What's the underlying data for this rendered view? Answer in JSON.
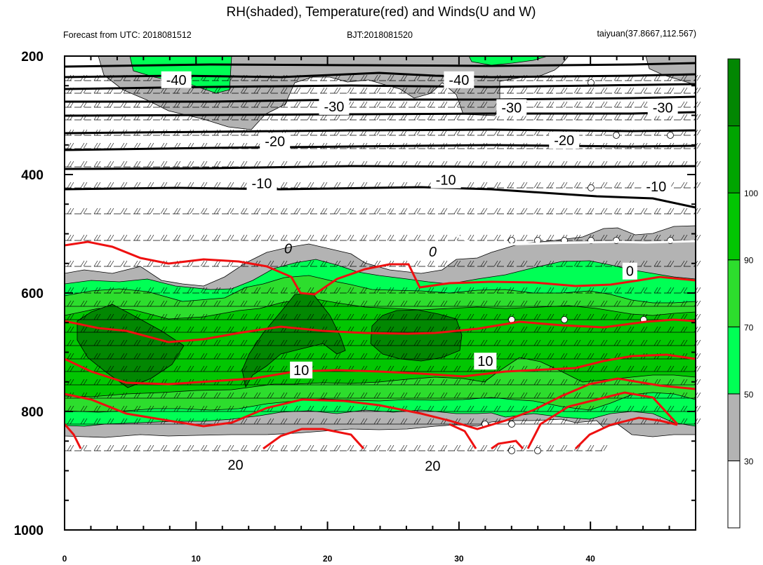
{
  "chart_data": {
    "type": "contour",
    "title": "RH(shaded), Temperature(red) and Winds(U and W)",
    "subtitle_left": "Forecast from UTC: 2018081512",
    "subtitle_center": "BJT:2018081520",
    "subtitle_right": "taiyuan(37.8667,112.567)",
    "x_ticks": [
      "0",
      "10",
      "20",
      "30",
      "40"
    ],
    "x_tick_values": [
      0,
      10,
      20,
      30,
      40
    ],
    "xlim": [
      0,
      48
    ],
    "y_ticks": [
      "200",
      "400",
      "600",
      "800",
      "1000"
    ],
    "y_tick_values": [
      200,
      400,
      600,
      800,
      1000
    ],
    "ylim": [
      1000,
      200
    ],
    "colorbar": {
      "labels": [
        "30",
        "50",
        "70",
        "90",
        "100"
      ],
      "levels": [
        30,
        50,
        70,
        90,
        100
      ],
      "colors": [
        "#ffffff",
        "#b3b3b3",
        "#00ff55",
        "#2ddd2d",
        "#02c602",
        "#00a500",
        "#028702"
      ]
    },
    "temperature_labels": [
      {
        "text": "-40",
        "x": 8.5,
        "y": 240
      },
      {
        "text": "-40",
        "x": 30,
        "y": 240
      },
      {
        "text": "-30",
        "x": 20.5,
        "y": 285
      },
      {
        "text": "-30",
        "x": 34,
        "y": 287
      },
      {
        "text": "-30",
        "x": 45.5,
        "y": 287
      },
      {
        "text": "-20",
        "x": 16,
        "y": 344
      },
      {
        "text": "-20",
        "x": 38,
        "y": 342
      },
      {
        "text": "-10",
        "x": 15,
        "y": 415
      },
      {
        "text": "-10",
        "x": 29,
        "y": 409
      },
      {
        "text": "-10",
        "x": 45,
        "y": 420
      },
      {
        "text": "0",
        "x": 17,
        "y": 525
      },
      {
        "text": "0",
        "x": 28,
        "y": 530
      },
      {
        "text": "0",
        "x": 43,
        "y": 563
      },
      {
        "text": "10",
        "x": 18,
        "y": 730
      },
      {
        "text": "10",
        "x": 32,
        "y": 715
      },
      {
        "text": "20",
        "x": 13,
        "y": 890
      },
      {
        "text": "20",
        "x": 28,
        "y": 892
      }
    ]
  }
}
